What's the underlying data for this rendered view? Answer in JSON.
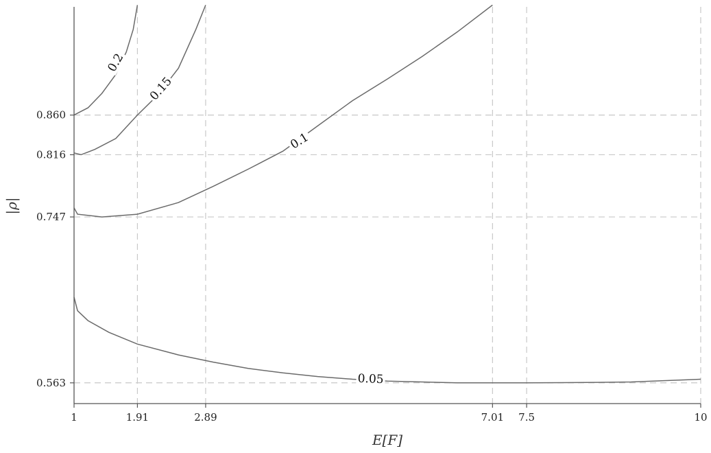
{
  "chart_data": {
    "type": "line",
    "xlabel": "E[F]",
    "ylabel": "|ρ|",
    "xlim": [
      1,
      10
    ],
    "ylim": [
      0.54,
      0.98
    ],
    "xticks": [
      1,
      1.91,
      2.89,
      7.01,
      7.5,
      10
    ],
    "xtick_labels": [
      "1",
      "1.91",
      "2.89",
      "7.01",
      "7.5",
      "10"
    ],
    "yticks": [
      0.563,
      0.747,
      0.816,
      0.86
    ],
    "ytick_labels": [
      "0.563",
      "0.747",
      "0.816",
      "0.860"
    ],
    "grid": "dashed at tick positions",
    "series": [
      {
        "name": "0.2",
        "label_at": [
          1.6,
          0.918
        ],
        "points": [
          [
            1.0,
            0.86
          ],
          [
            1.2,
            0.868
          ],
          [
            1.4,
            0.884
          ],
          [
            1.6,
            0.905
          ],
          [
            1.75,
            0.93
          ],
          [
            1.85,
            0.955
          ],
          [
            1.91,
            0.982
          ]
        ]
      },
      {
        "name": "0.15",
        "label_at": [
          2.25,
          0.889
        ],
        "points": [
          [
            1.0,
            0.818
          ],
          [
            1.1,
            0.816
          ],
          [
            1.3,
            0.822
          ],
          [
            1.6,
            0.834
          ],
          [
            1.91,
            0.86
          ],
          [
            2.2,
            0.882
          ],
          [
            2.5,
            0.912
          ],
          [
            2.75,
            0.955
          ],
          [
            2.89,
            0.982
          ]
        ]
      },
      {
        "name": "0.1",
        "label_at": [
          4.24,
          0.831
        ],
        "points": [
          [
            1.0,
            0.757
          ],
          [
            1.05,
            0.75
          ],
          [
            1.4,
            0.747
          ],
          [
            1.91,
            0.75
          ],
          [
            2.5,
            0.763
          ],
          [
            3.0,
            0.781
          ],
          [
            3.5,
            0.8
          ],
          [
            4.0,
            0.82
          ],
          [
            4.5,
            0.848
          ],
          [
            5.0,
            0.876
          ],
          [
            5.5,
            0.9
          ],
          [
            6.0,
            0.925
          ],
          [
            6.5,
            0.952
          ],
          [
            7.01,
            0.982
          ]
        ]
      },
      {
        "name": "0.05",
        "label_at": [
          5.26,
          0.567
        ],
        "points": [
          [
            1.0,
            0.658
          ],
          [
            1.05,
            0.643
          ],
          [
            1.2,
            0.632
          ],
          [
            1.5,
            0.619
          ],
          [
            1.91,
            0.606
          ],
          [
            2.5,
            0.594
          ],
          [
            3.0,
            0.586
          ],
          [
            3.5,
            0.579
          ],
          [
            4.0,
            0.574
          ],
          [
            4.5,
            0.57
          ],
          [
            5.0,
            0.567
          ],
          [
            5.5,
            0.565
          ],
          [
            6.0,
            0.564
          ],
          [
            6.5,
            0.563
          ],
          [
            7.0,
            0.563
          ],
          [
            7.5,
            0.563
          ],
          [
            8.0,
            0.5632
          ],
          [
            8.5,
            0.5635
          ],
          [
            9.0,
            0.564
          ],
          [
            9.5,
            0.5655
          ],
          [
            10.0,
            0.567
          ]
        ]
      }
    ]
  }
}
